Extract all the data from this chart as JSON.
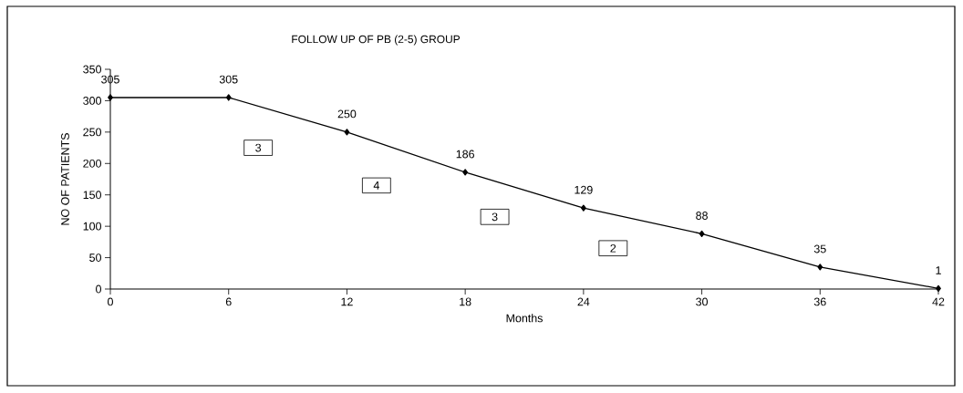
{
  "chart_data": {
    "type": "line",
    "title": "FOLLOW UP  OF PB (2-5) GROUP",
    "xlabel": "Months",
    "ylabel": "NO OF PATIENTS",
    "x": [
      0,
      6,
      12,
      18,
      24,
      30,
      36,
      42
    ],
    "values": [
      305,
      305,
      250,
      186,
      129,
      88,
      35,
      1
    ],
    "color": "#000000",
    "marker": "diamond",
    "data_labels": true,
    "grid": false,
    "xlim": [
      0,
      42
    ],
    "xticks": [
      0,
      6,
      12,
      18,
      24,
      30,
      36,
      42
    ],
    "ylim": [
      0,
      350
    ],
    "yticks": [
      0,
      50,
      100,
      150,
      200,
      250,
      300,
      350
    ],
    "annotations": [
      {
        "text": "3",
        "x": 7.5,
        "y": 225
      },
      {
        "text": "4",
        "x": 13.5,
        "y": 165
      },
      {
        "text": "3",
        "x": 19.5,
        "y": 115
      },
      {
        "text": "2",
        "x": 25.5,
        "y": 65
      }
    ]
  }
}
